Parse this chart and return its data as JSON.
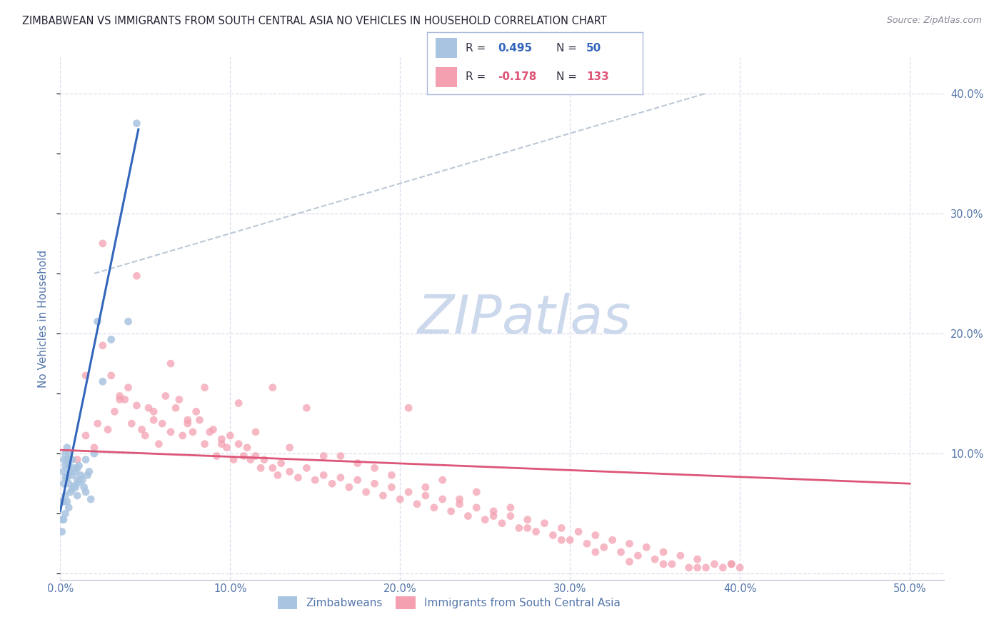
{
  "title": "ZIMBABWEAN VS IMMIGRANTS FROM SOUTH CENTRAL ASIA NO VEHICLES IN HOUSEHOLD CORRELATION CHART",
  "source": "Source: ZipAtlas.com",
  "ylabel": "No Vehicles in Household",
  "ytick_vals": [
    0.0,
    0.1,
    0.2,
    0.3,
    0.4
  ],
  "ytick_labels": [
    "",
    "10.0%",
    "20.0%",
    "30.0%",
    "40.0%"
  ],
  "xtick_vals": [
    0.0,
    0.1,
    0.2,
    0.3,
    0.4,
    0.5
  ],
  "xtick_labels": [
    "0.0%",
    "10.0%",
    "20.0%",
    "30.0%",
    "40.0%",
    "50.0%"
  ],
  "xlim": [
    0.0,
    0.52
  ],
  "ylim": [
    -0.005,
    0.43
  ],
  "blue_R": 0.495,
  "blue_N": 50,
  "pink_R": -0.178,
  "pink_N": 133,
  "blue_color": "#a8c4e0",
  "pink_color": "#f4a0b0",
  "blue_line_color": "#3366bb",
  "pink_line_color": "#dd5577",
  "grid_color": "#ddddee",
  "watermark_color": "#ccd8ec",
  "title_color": "#222233",
  "axis_color": "#5577aa",
  "legend_border_color": "#aabbdd",
  "blue_scatter_x": [
    0.001,
    0.001,
    0.001,
    0.002,
    0.002,
    0.002,
    0.002,
    0.002,
    0.003,
    0.003,
    0.003,
    0.003,
    0.003,
    0.004,
    0.004,
    0.004,
    0.004,
    0.005,
    0.005,
    0.005,
    0.005,
    0.006,
    0.006,
    0.006,
    0.007,
    0.007,
    0.007,
    0.008,
    0.008,
    0.009,
    0.009,
    0.01,
    0.01,
    0.01,
    0.011,
    0.011,
    0.012,
    0.013,
    0.014,
    0.015,
    0.015,
    0.016,
    0.017,
    0.018,
    0.02,
    0.022,
    0.025,
    0.03,
    0.04,
    0.045
  ],
  "blue_scatter_y": [
    0.06,
    0.045,
    0.035,
    0.095,
    0.085,
    0.075,
    0.06,
    0.045,
    0.1,
    0.09,
    0.08,
    0.065,
    0.05,
    0.105,
    0.095,
    0.08,
    0.06,
    0.1,
    0.09,
    0.075,
    0.055,
    0.095,
    0.085,
    0.068,
    0.095,
    0.082,
    0.07,
    0.088,
    0.073,
    0.085,
    0.072,
    0.088,
    0.078,
    0.065,
    0.09,
    0.076,
    0.082,
    0.078,
    0.072,
    0.095,
    0.068,
    0.082,
    0.085,
    0.062,
    0.1,
    0.21,
    0.16,
    0.195,
    0.21,
    0.375
  ],
  "pink_scatter_x": [
    0.01,
    0.015,
    0.02,
    0.022,
    0.025,
    0.028,
    0.03,
    0.032,
    0.035,
    0.038,
    0.04,
    0.042,
    0.045,
    0.048,
    0.05,
    0.052,
    0.055,
    0.058,
    0.06,
    0.062,
    0.065,
    0.068,
    0.07,
    0.072,
    0.075,
    0.078,
    0.08,
    0.082,
    0.085,
    0.088,
    0.09,
    0.092,
    0.095,
    0.098,
    0.1,
    0.102,
    0.105,
    0.108,
    0.11,
    0.112,
    0.115,
    0.118,
    0.12,
    0.125,
    0.128,
    0.13,
    0.135,
    0.14,
    0.145,
    0.15,
    0.155,
    0.16,
    0.165,
    0.17,
    0.175,
    0.18,
    0.185,
    0.19,
    0.195,
    0.2,
    0.205,
    0.21,
    0.215,
    0.22,
    0.225,
    0.23,
    0.235,
    0.24,
    0.245,
    0.25,
    0.255,
    0.26,
    0.265,
    0.27,
    0.275,
    0.28,
    0.285,
    0.29,
    0.295,
    0.3,
    0.305,
    0.31,
    0.315,
    0.32,
    0.325,
    0.33,
    0.335,
    0.34,
    0.345,
    0.35,
    0.355,
    0.36,
    0.365,
    0.37,
    0.375,
    0.38,
    0.385,
    0.39,
    0.395,
    0.4,
    0.015,
    0.035,
    0.055,
    0.075,
    0.095,
    0.115,
    0.135,
    0.155,
    0.175,
    0.195,
    0.215,
    0.235,
    0.255,
    0.275,
    0.295,
    0.315,
    0.335,
    0.355,
    0.375,
    0.395,
    0.025,
    0.045,
    0.065,
    0.085,
    0.105,
    0.125,
    0.145,
    0.165,
    0.185,
    0.205,
    0.225,
    0.245,
    0.265
  ],
  "pink_scatter_y": [
    0.095,
    0.115,
    0.105,
    0.125,
    0.19,
    0.12,
    0.165,
    0.135,
    0.148,
    0.145,
    0.155,
    0.125,
    0.14,
    0.12,
    0.115,
    0.138,
    0.128,
    0.108,
    0.125,
    0.148,
    0.118,
    0.138,
    0.145,
    0.115,
    0.125,
    0.118,
    0.135,
    0.128,
    0.108,
    0.118,
    0.12,
    0.098,
    0.112,
    0.105,
    0.115,
    0.095,
    0.108,
    0.098,
    0.105,
    0.095,
    0.098,
    0.088,
    0.095,
    0.088,
    0.082,
    0.092,
    0.085,
    0.08,
    0.088,
    0.078,
    0.082,
    0.075,
    0.08,
    0.072,
    0.078,
    0.068,
    0.075,
    0.065,
    0.072,
    0.062,
    0.068,
    0.058,
    0.065,
    0.055,
    0.062,
    0.052,
    0.058,
    0.048,
    0.055,
    0.045,
    0.052,
    0.042,
    0.048,
    0.038,
    0.045,
    0.035,
    0.042,
    0.032,
    0.038,
    0.028,
    0.035,
    0.025,
    0.032,
    0.022,
    0.028,
    0.018,
    0.025,
    0.015,
    0.022,
    0.012,
    0.018,
    0.008,
    0.015,
    0.005,
    0.012,
    0.005,
    0.008,
    0.005,
    0.008,
    0.005,
    0.165,
    0.145,
    0.135,
    0.128,
    0.108,
    0.118,
    0.105,
    0.098,
    0.092,
    0.082,
    0.072,
    0.062,
    0.048,
    0.038,
    0.028,
    0.018,
    0.01,
    0.008,
    0.005,
    0.008,
    0.275,
    0.248,
    0.175,
    0.155,
    0.142,
    0.155,
    0.138,
    0.098,
    0.088,
    0.138,
    0.078,
    0.068,
    0.055
  ],
  "blue_line_x": [
    0.0,
    0.045
  ],
  "blue_line_y_intercept": 0.045,
  "blue_line_slope": 7.0,
  "pink_line_x": [
    0.0,
    0.5
  ],
  "pink_line_y_start": 0.103,
  "pink_line_y_end": 0.075,
  "dash_line_x": [
    0.025,
    0.38
  ],
  "dash_line_y": [
    0.22,
    0.4
  ]
}
